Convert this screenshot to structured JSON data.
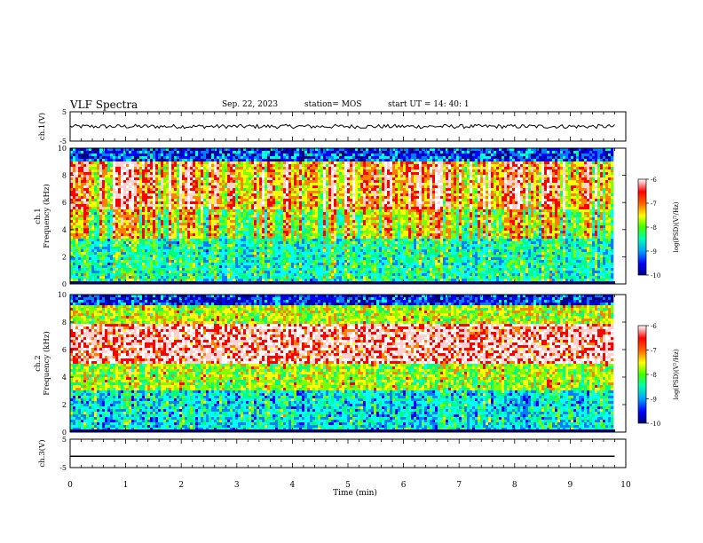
{
  "header": {
    "title": "VLF Spectra",
    "date": "Sep. 22, 2023",
    "station": "station= MOS",
    "start_ut": "start  UT =   14: 40: 1"
  },
  "chart_data": [
    {
      "type": "line",
      "panel": "ch1-waveform",
      "ylabel": "ch.1(V)",
      "ylim": [
        -5,
        5
      ],
      "yticks": [
        "5",
        "-5"
      ],
      "xlim": [
        0,
        10
      ],
      "series": [
        {
          "x": [
            0,
            9.8
          ],
          "values": [
            0,
            0
          ]
        }
      ]
    },
    {
      "type": "heatmap",
      "panel": "ch1-spectrogram",
      "ylabel": "ch.1\nFrequency (kHz)",
      "ylim": [
        0,
        10
      ],
      "yticks": [
        "0",
        "2",
        "4",
        "6",
        "8",
        "10"
      ],
      "xlim": [
        0,
        10
      ],
      "data_x_max": 9.8,
      "colorbar": {
        "label": "log(PSD)(V²/Hz)",
        "range": [
          -10,
          -6
        ],
        "ticks": [
          "-6",
          "-7",
          "-8",
          "-9",
          "-10"
        ]
      }
    },
    {
      "type": "heatmap",
      "panel": "ch2-spectrogram",
      "ylabel": "ch.2\nFrequency (kHz)",
      "ylim": [
        0,
        10
      ],
      "yticks": [
        "0",
        "2",
        "4",
        "6",
        "8",
        "10"
      ],
      "xlim": [
        0,
        10
      ],
      "data_x_max": 9.8,
      "colorbar": {
        "label": "log(PSD)(V²/Hz)",
        "range": [
          -10,
          -6
        ],
        "ticks": [
          "-6",
          "-7",
          "-8",
          "-9",
          "-10"
        ]
      }
    },
    {
      "type": "line",
      "panel": "ch3-waveform",
      "ylabel": "ch.3(V)",
      "ylim": [
        -5,
        5
      ],
      "yticks": [
        "5",
        "-5"
      ],
      "xlim": [
        0,
        10
      ],
      "series": [
        {
          "x": [
            0,
            9.8
          ],
          "values": [
            -1,
            -1
          ]
        }
      ]
    }
  ],
  "xaxis": {
    "label": "Time  (min)",
    "ticks": [
      "0",
      "1",
      "2",
      "3",
      "4",
      "5",
      "6",
      "7",
      "8",
      "9",
      "10"
    ]
  },
  "colors": {
    "scale": [
      "#000080",
      "#0000ff",
      "#0080ff",
      "#00ffff",
      "#00ff80",
      "#80ff00",
      "#ffff00",
      "#ff8000",
      "#ff0000",
      "#ffd0d0",
      "#ffffff"
    ]
  }
}
